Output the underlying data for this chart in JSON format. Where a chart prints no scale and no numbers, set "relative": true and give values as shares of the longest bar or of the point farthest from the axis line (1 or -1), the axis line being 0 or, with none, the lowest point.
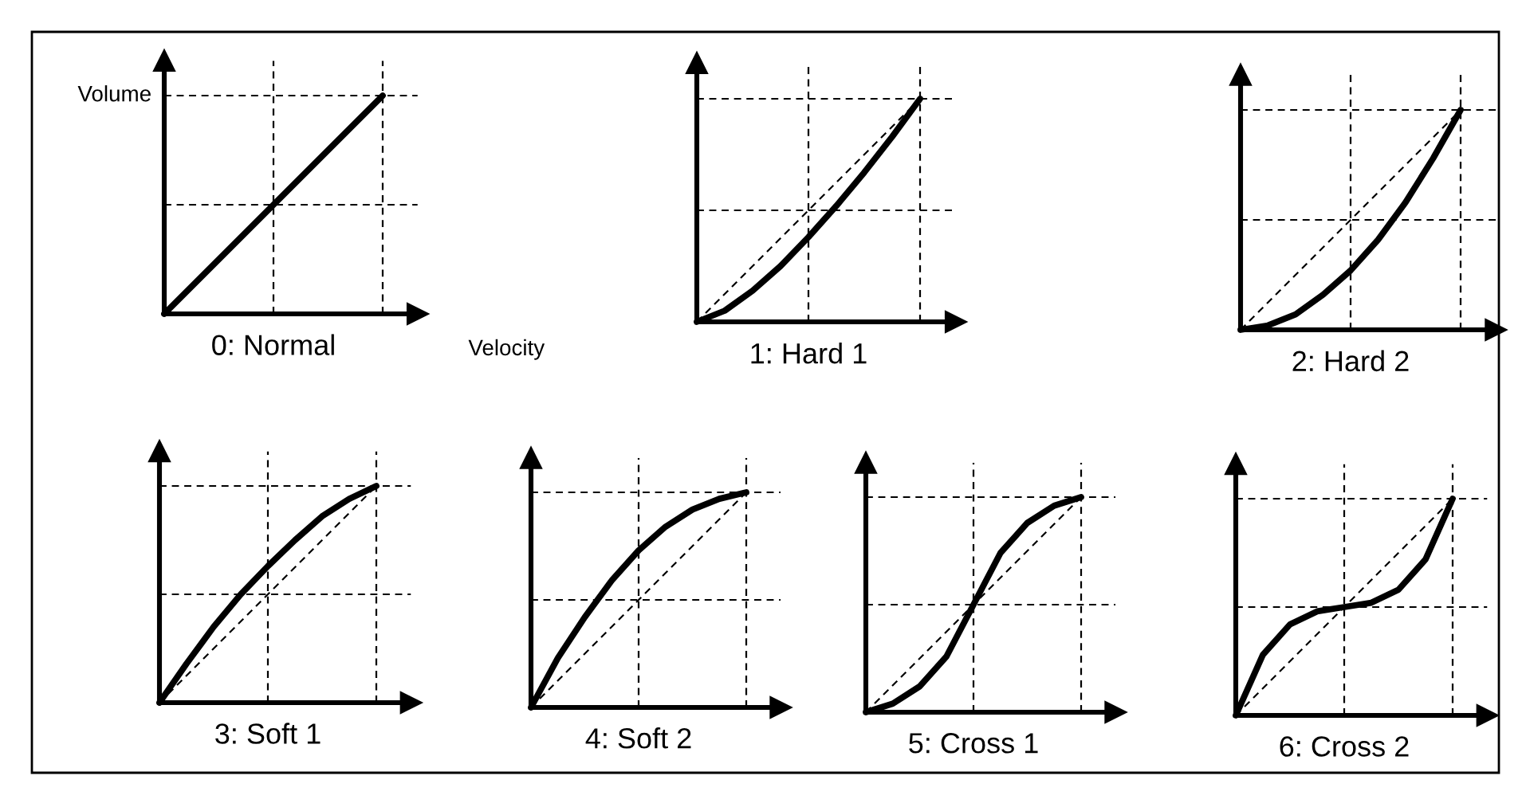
{
  "chart_data": [
    {
      "type": "line",
      "title": "0: Normal",
      "xlabel": "Velocity",
      "ylabel": "Volume",
      "relative": true,
      "grid": true,
      "tick_labels": false,
      "categories": [
        null,
        null,
        null,
        null,
        null,
        null,
        null,
        null,
        null
      ],
      "series": [
        {
          "color": "#000000",
          "line_style": "solid",
          "values": [
            0,
            0.125,
            0.25,
            0.375,
            0.5,
            0.625,
            0.75,
            0.875,
            1
          ]
        }
      ]
    },
    {
      "type": "line",
      "title": "1: Hard 1",
      "relative": true,
      "grid": true,
      "tick_labels": false,
      "categories": [
        null,
        null,
        null,
        null,
        null,
        null,
        null,
        null,
        null
      ],
      "series": [
        {
          "color": "#000000",
          "line_style": "solid",
          "values": [
            0,
            0.05,
            0.14,
            0.25,
            0.38,
            0.52,
            0.67,
            0.83,
            1
          ]
        },
        {
          "color": "#000000",
          "line_style": "dashed",
          "values": [
            0,
            0.125,
            0.25,
            0.375,
            0.5,
            0.625,
            0.75,
            0.875,
            1
          ]
        }
      ]
    },
    {
      "type": "line",
      "title": "2: Hard 2",
      "relative": true,
      "grid": true,
      "tick_labels": false,
      "categories": [
        null,
        null,
        null,
        null,
        null,
        null,
        null,
        null,
        null
      ],
      "series": [
        {
          "color": "#000000",
          "line_style": "solid",
          "values": [
            0,
            0.02,
            0.07,
            0.16,
            0.27,
            0.41,
            0.58,
            0.78,
            1
          ]
        },
        {
          "color": "#000000",
          "line_style": "dashed",
          "values": [
            0,
            0.125,
            0.25,
            0.375,
            0.5,
            0.625,
            0.75,
            0.875,
            1
          ]
        }
      ]
    },
    {
      "type": "line",
      "title": "3: Soft 1",
      "relative": true,
      "grid": true,
      "tick_labels": false,
      "categories": [
        null,
        null,
        null,
        null,
        null,
        null,
        null,
        null,
        null
      ],
      "series": [
        {
          "color": "#000000",
          "line_style": "solid",
          "values": [
            0,
            0.18,
            0.35,
            0.5,
            0.63,
            0.75,
            0.86,
            0.94,
            1
          ]
        },
        {
          "color": "#000000",
          "line_style": "dashed",
          "values": [
            0,
            0.125,
            0.25,
            0.375,
            0.5,
            0.625,
            0.75,
            0.875,
            1
          ]
        }
      ]
    },
    {
      "type": "line",
      "title": "4: Soft 2",
      "relative": true,
      "grid": true,
      "tick_labels": false,
      "categories": [
        null,
        null,
        null,
        null,
        null,
        null,
        null,
        null,
        null
      ],
      "series": [
        {
          "color": "#000000",
          "line_style": "solid",
          "values": [
            0,
            0.23,
            0.42,
            0.59,
            0.73,
            0.84,
            0.92,
            0.97,
            1
          ]
        },
        {
          "color": "#000000",
          "line_style": "dashed",
          "values": [
            0,
            0.125,
            0.25,
            0.375,
            0.5,
            0.625,
            0.75,
            0.875,
            1
          ]
        }
      ]
    },
    {
      "type": "line",
      "title": "5: Cross 1",
      "relative": true,
      "grid": true,
      "tick_labels": false,
      "categories": [
        null,
        null,
        null,
        null,
        null,
        null,
        null,
        null,
        null
      ],
      "series": [
        {
          "color": "#000000",
          "line_style": "solid",
          "values": [
            0,
            0.04,
            0.12,
            0.26,
            0.5,
            0.74,
            0.88,
            0.96,
            1
          ]
        },
        {
          "color": "#000000",
          "line_style": "dashed",
          "values": [
            0,
            0.125,
            0.25,
            0.375,
            0.5,
            0.625,
            0.75,
            0.875,
            1
          ]
        }
      ]
    },
    {
      "type": "line",
      "title": "6: Cross 2",
      "relative": true,
      "grid": true,
      "tick_labels": false,
      "categories": [
        null,
        null,
        null,
        null,
        null,
        null,
        null,
        null,
        null
      ],
      "series": [
        {
          "color": "#000000",
          "line_style": "solid",
          "values": [
            0,
            0.28,
            0.42,
            0.48,
            0.5,
            0.52,
            0.58,
            0.72,
            1
          ]
        },
        {
          "color": "#000000",
          "line_style": "dashed",
          "values": [
            0,
            0.125,
            0.25,
            0.375,
            0.5,
            0.625,
            0.75,
            0.875,
            1
          ]
        }
      ]
    }
  ]
}
